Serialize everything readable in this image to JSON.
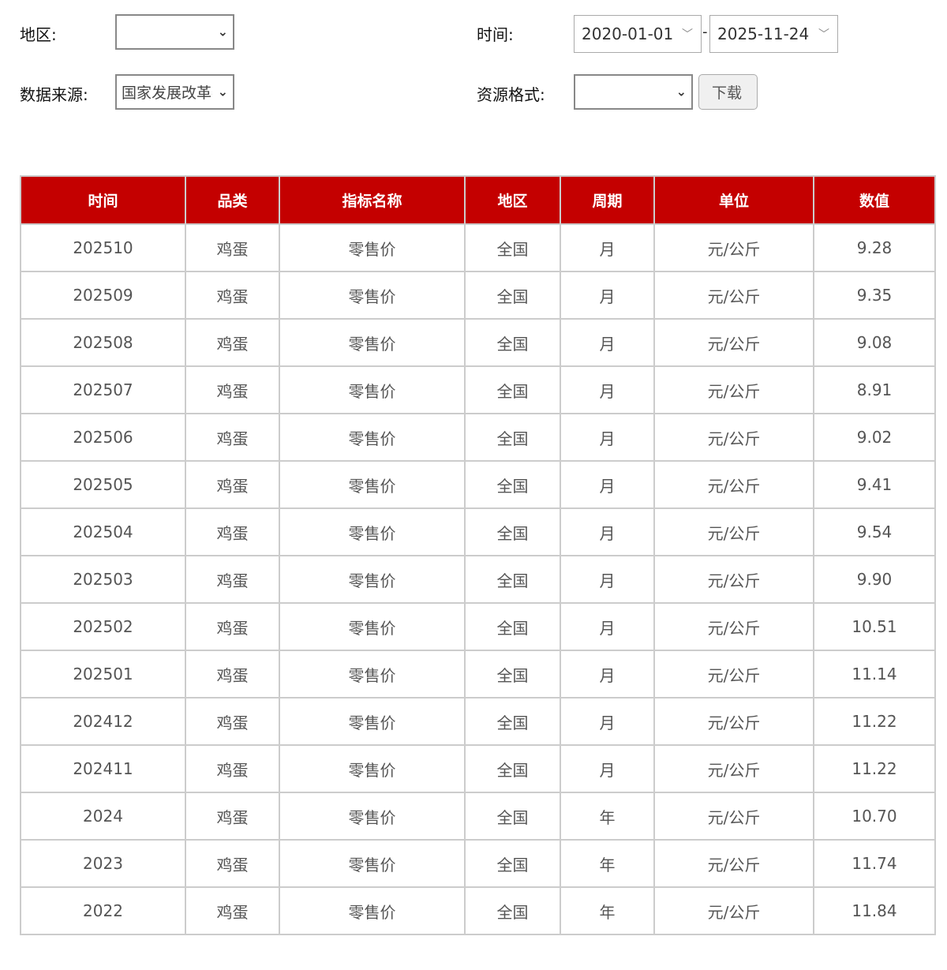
{
  "filters": {
    "region_label": "地区:",
    "region_value": "",
    "source_label": "数据来源:",
    "source_value": "国家发展改革委",
    "time_label": "时间:",
    "date_from": "2020-01-01",
    "date_separator": "-",
    "date_to": "2025-11-24",
    "format_label": "资源格式:",
    "format_value": "",
    "download_label": "下载"
  },
  "colors": {
    "header_bg": "#c40000",
    "header_text": "#ffffff"
  },
  "table": {
    "headers": [
      "时间",
      "品类",
      "指标名称",
      "地区",
      "周期",
      "单位",
      "数值"
    ],
    "rows": [
      [
        "202510",
        "鸡蛋",
        "零售价",
        "全国",
        "月",
        "元/公斤",
        "9.28"
      ],
      [
        "202509",
        "鸡蛋",
        "零售价",
        "全国",
        "月",
        "元/公斤",
        "9.35"
      ],
      [
        "202508",
        "鸡蛋",
        "零售价",
        "全国",
        "月",
        "元/公斤",
        "9.08"
      ],
      [
        "202507",
        "鸡蛋",
        "零售价",
        "全国",
        "月",
        "元/公斤",
        "8.91"
      ],
      [
        "202506",
        "鸡蛋",
        "零售价",
        "全国",
        "月",
        "元/公斤",
        "9.02"
      ],
      [
        "202505",
        "鸡蛋",
        "零售价",
        "全国",
        "月",
        "元/公斤",
        "9.41"
      ],
      [
        "202504",
        "鸡蛋",
        "零售价",
        "全国",
        "月",
        "元/公斤",
        "9.54"
      ],
      [
        "202503",
        "鸡蛋",
        "零售价",
        "全国",
        "月",
        "元/公斤",
        "9.90"
      ],
      [
        "202502",
        "鸡蛋",
        "零售价",
        "全国",
        "月",
        "元/公斤",
        "10.51"
      ],
      [
        "202501",
        "鸡蛋",
        "零售价",
        "全国",
        "月",
        "元/公斤",
        "11.14"
      ],
      [
        "202412",
        "鸡蛋",
        "零售价",
        "全国",
        "月",
        "元/公斤",
        "11.22"
      ],
      [
        "202411",
        "鸡蛋",
        "零售价",
        "全国",
        "月",
        "元/公斤",
        "11.22"
      ],
      [
        "2024",
        "鸡蛋",
        "零售价",
        "全国",
        "年",
        "元/公斤",
        "10.70"
      ],
      [
        "2023",
        "鸡蛋",
        "零售价",
        "全国",
        "年",
        "元/公斤",
        "11.74"
      ],
      [
        "2022",
        "鸡蛋",
        "零售价",
        "全国",
        "年",
        "元/公斤",
        "11.84"
      ]
    ]
  }
}
